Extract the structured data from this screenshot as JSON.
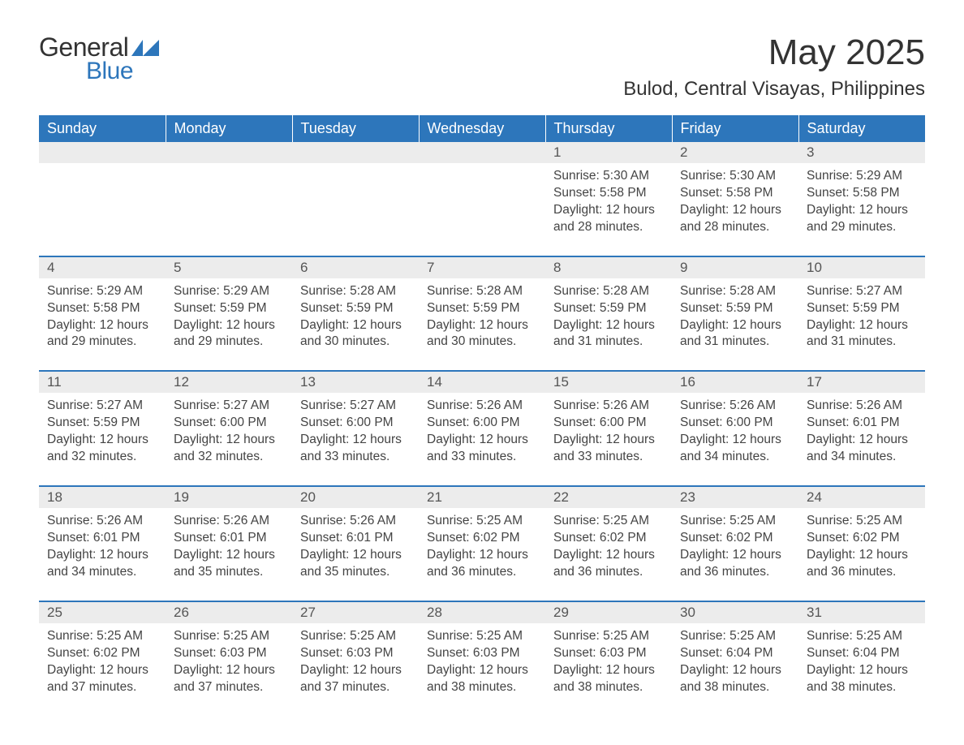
{
  "logo": {
    "general": "General",
    "blue": "Blue"
  },
  "title": "May 2025",
  "location": "Bulod, Central Visayas, Philippines",
  "headers": [
    "Sunday",
    "Monday",
    "Tuesday",
    "Wednesday",
    "Thursday",
    "Friday",
    "Saturday"
  ],
  "colors": {
    "header_bg": "#2d76bb",
    "header_text": "#ffffff",
    "daynum_bg": "#ececec",
    "week_divider": "#2d76bb",
    "body_text": "#444444",
    "title_text": "#333333",
    "logo_blue": "#2d76bb"
  },
  "fonts": {
    "title_size": 44,
    "location_size": 24,
    "header_size": 18,
    "daynum_size": 17,
    "detail_size": 15.5
  },
  "labels": {
    "sunrise": "Sunrise:",
    "sunset": "Sunset:",
    "daylight": "Daylight:"
  },
  "weeks": [
    [
      null,
      null,
      null,
      null,
      {
        "n": "1",
        "sr": "5:30 AM",
        "ss": "5:58 PM",
        "dl": "12 hours and 28 minutes."
      },
      {
        "n": "2",
        "sr": "5:30 AM",
        "ss": "5:58 PM",
        "dl": "12 hours and 28 minutes."
      },
      {
        "n": "3",
        "sr": "5:29 AM",
        "ss": "5:58 PM",
        "dl": "12 hours and 29 minutes."
      }
    ],
    [
      {
        "n": "4",
        "sr": "5:29 AM",
        "ss": "5:58 PM",
        "dl": "12 hours and 29 minutes."
      },
      {
        "n": "5",
        "sr": "5:29 AM",
        "ss": "5:59 PM",
        "dl": "12 hours and 29 minutes."
      },
      {
        "n": "6",
        "sr": "5:28 AM",
        "ss": "5:59 PM",
        "dl": "12 hours and 30 minutes."
      },
      {
        "n": "7",
        "sr": "5:28 AM",
        "ss": "5:59 PM",
        "dl": "12 hours and 30 minutes."
      },
      {
        "n": "8",
        "sr": "5:28 AM",
        "ss": "5:59 PM",
        "dl": "12 hours and 31 minutes."
      },
      {
        "n": "9",
        "sr": "5:28 AM",
        "ss": "5:59 PM",
        "dl": "12 hours and 31 minutes."
      },
      {
        "n": "10",
        "sr": "5:27 AM",
        "ss": "5:59 PM",
        "dl": "12 hours and 31 minutes."
      }
    ],
    [
      {
        "n": "11",
        "sr": "5:27 AM",
        "ss": "5:59 PM",
        "dl": "12 hours and 32 minutes."
      },
      {
        "n": "12",
        "sr": "5:27 AM",
        "ss": "6:00 PM",
        "dl": "12 hours and 32 minutes."
      },
      {
        "n": "13",
        "sr": "5:27 AM",
        "ss": "6:00 PM",
        "dl": "12 hours and 33 minutes."
      },
      {
        "n": "14",
        "sr": "5:26 AM",
        "ss": "6:00 PM",
        "dl": "12 hours and 33 minutes."
      },
      {
        "n": "15",
        "sr": "5:26 AM",
        "ss": "6:00 PM",
        "dl": "12 hours and 33 minutes."
      },
      {
        "n": "16",
        "sr": "5:26 AM",
        "ss": "6:00 PM",
        "dl": "12 hours and 34 minutes."
      },
      {
        "n": "17",
        "sr": "5:26 AM",
        "ss": "6:01 PM",
        "dl": "12 hours and 34 minutes."
      }
    ],
    [
      {
        "n": "18",
        "sr": "5:26 AM",
        "ss": "6:01 PM",
        "dl": "12 hours and 34 minutes."
      },
      {
        "n": "19",
        "sr": "5:26 AM",
        "ss": "6:01 PM",
        "dl": "12 hours and 35 minutes."
      },
      {
        "n": "20",
        "sr": "5:26 AM",
        "ss": "6:01 PM",
        "dl": "12 hours and 35 minutes."
      },
      {
        "n": "21",
        "sr": "5:25 AM",
        "ss": "6:02 PM",
        "dl": "12 hours and 36 minutes."
      },
      {
        "n": "22",
        "sr": "5:25 AM",
        "ss": "6:02 PM",
        "dl": "12 hours and 36 minutes."
      },
      {
        "n": "23",
        "sr": "5:25 AM",
        "ss": "6:02 PM",
        "dl": "12 hours and 36 minutes."
      },
      {
        "n": "24",
        "sr": "5:25 AM",
        "ss": "6:02 PM",
        "dl": "12 hours and 36 minutes."
      }
    ],
    [
      {
        "n": "25",
        "sr": "5:25 AM",
        "ss": "6:02 PM",
        "dl": "12 hours and 37 minutes."
      },
      {
        "n": "26",
        "sr": "5:25 AM",
        "ss": "6:03 PM",
        "dl": "12 hours and 37 minutes."
      },
      {
        "n": "27",
        "sr": "5:25 AM",
        "ss": "6:03 PM",
        "dl": "12 hours and 37 minutes."
      },
      {
        "n": "28",
        "sr": "5:25 AM",
        "ss": "6:03 PM",
        "dl": "12 hours and 38 minutes."
      },
      {
        "n": "29",
        "sr": "5:25 AM",
        "ss": "6:03 PM",
        "dl": "12 hours and 38 minutes."
      },
      {
        "n": "30",
        "sr": "5:25 AM",
        "ss": "6:04 PM",
        "dl": "12 hours and 38 minutes."
      },
      {
        "n": "31",
        "sr": "5:25 AM",
        "ss": "6:04 PM",
        "dl": "12 hours and 38 minutes."
      }
    ]
  ]
}
